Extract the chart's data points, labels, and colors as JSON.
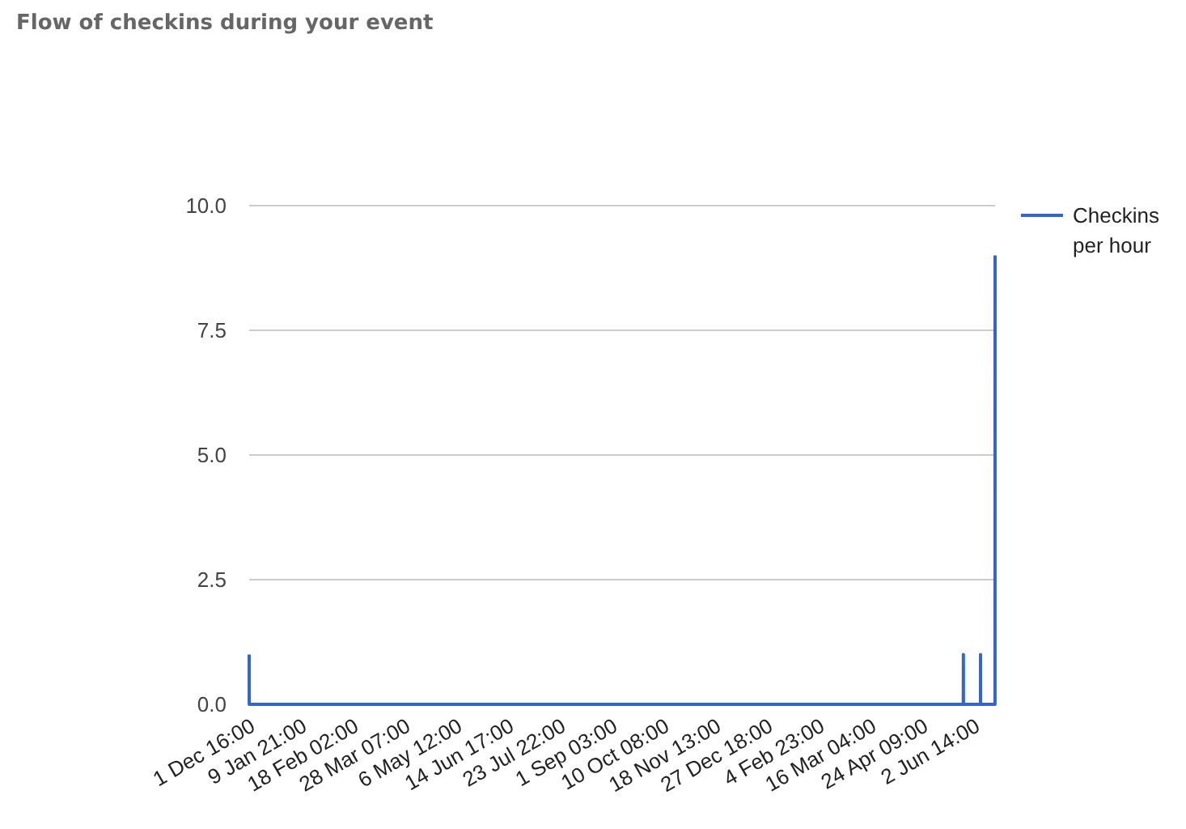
{
  "chart_data": {
    "type": "line",
    "title": "Flow of checkins during your event",
    "x": [
      "2015-12-01T16:00",
      "2015-12-01T17:00",
      "2017-05-25T11:00",
      "2017-05-25T12:00",
      "2017-05-25T13:00",
      "2017-06-07T11:00",
      "2017-06-07T12:00",
      "2017-06-07T13:00",
      "2017-06-18T11:00",
      "2017-06-18T12:00"
    ],
    "series": [
      {
        "name": "Checkins per hour",
        "color": "#3366cc",
        "values": [
          1,
          0,
          0,
          1,
          0,
          0,
          1,
          0,
          0,
          9
        ]
      }
    ],
    "xlim": [
      "2015-12-01T16:00",
      "2017-06-18T12:00"
    ],
    "xticks": [
      {
        "value": "2015-12-01T16:00",
        "label": "1 Dec 16:00"
      },
      {
        "value": "2016-01-09T21:00",
        "label": "9 Jan 21:00"
      },
      {
        "value": "2016-02-18T02:00",
        "label": "18 Feb 02:00"
      },
      {
        "value": "2016-03-28T07:00",
        "label": "28 Mar 07:00"
      },
      {
        "value": "2016-05-06T12:00",
        "label": "6 May 12:00"
      },
      {
        "value": "2016-06-14T17:00",
        "label": "14 Jun 17:00"
      },
      {
        "value": "2016-07-23T22:00",
        "label": "23 Jul 22:00"
      },
      {
        "value": "2016-09-01T03:00",
        "label": "1 Sep 03:00"
      },
      {
        "value": "2016-10-10T08:00",
        "label": "10 Oct 08:00"
      },
      {
        "value": "2016-11-18T13:00",
        "label": "18 Nov 13:00"
      },
      {
        "value": "2016-12-27T18:00",
        "label": "27 Dec 18:00"
      },
      {
        "value": "2017-02-04T23:00",
        "label": "4 Feb 23:00"
      },
      {
        "value": "2017-03-16T04:00",
        "label": "16 Mar 04:00"
      },
      {
        "value": "2017-04-24T09:00",
        "label": "24 Apr 09:00"
      },
      {
        "value": "2017-06-02T14:00",
        "label": "2 Jun 14:00"
      }
    ],
    "ylim": [
      0,
      10
    ],
    "yticks": [
      {
        "value": 0,
        "label": "0.0"
      },
      {
        "value": 2.5,
        "label": "2.5"
      },
      {
        "value": 5,
        "label": "5.0"
      },
      {
        "value": 7.5,
        "label": "7.5"
      },
      {
        "value": 10,
        "label": "10.0"
      }
    ],
    "grid": "y",
    "legend": "right",
    "marker": "none",
    "line_style": "solid"
  }
}
